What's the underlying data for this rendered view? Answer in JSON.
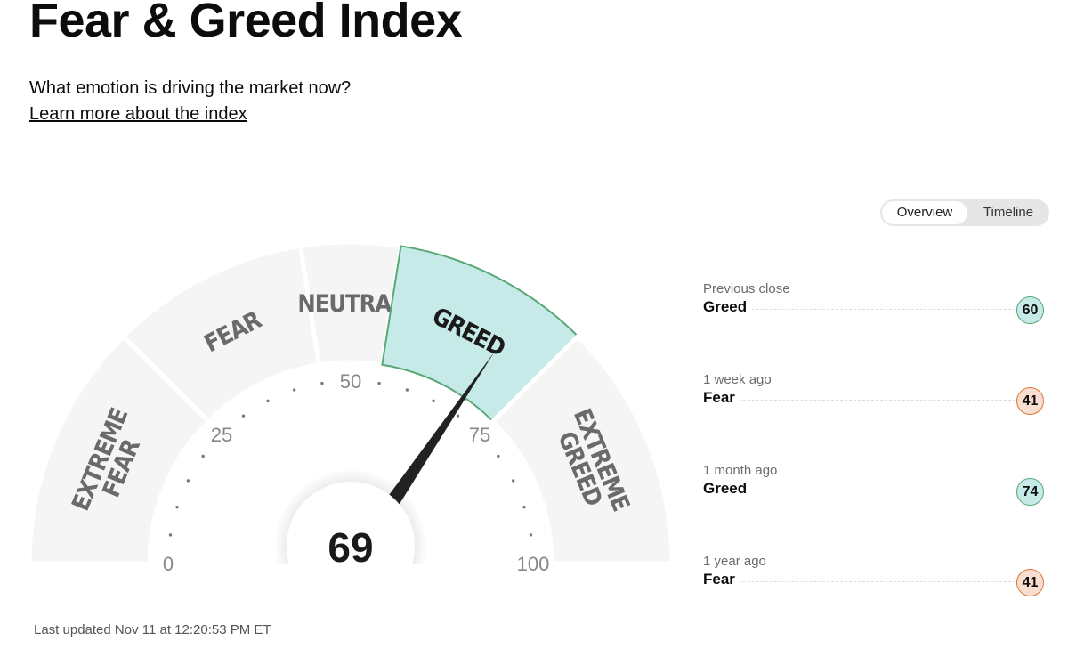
{
  "page": {
    "title": "Fear & Greed Index",
    "subtitle": "What emotion is driving the market now?",
    "learn_more": "Learn more about the index",
    "last_updated": "Last updated Nov 11 at 12:20:53 PM ET"
  },
  "toggle": {
    "overview": "Overview",
    "timeline": "Timeline",
    "selected": "Overview"
  },
  "chart_data": {
    "type": "gauge",
    "value": 69,
    "value_label": "69",
    "range": [
      0,
      100
    ],
    "active_segment": "GREED",
    "segments": [
      {
        "label": [
          "EXTREME",
          "FEAR"
        ],
        "from": 0,
        "to": 25
      },
      {
        "label": [
          "FEAR"
        ],
        "from": 25,
        "to": 45
      },
      {
        "label": [
          "NEUTRAL"
        ],
        "from": 45,
        "to": 55
      },
      {
        "label": [
          "GREED"
        ],
        "from": 55,
        "to": 75
      },
      {
        "label": [
          "EXTREME",
          "GREED"
        ],
        "from": 75,
        "to": 100
      }
    ],
    "tick_labels": [
      "0",
      "25",
      "50",
      "75",
      "100"
    ],
    "tick_values": [
      0,
      25,
      50,
      75,
      100
    ],
    "minor_tick_step": 5
  },
  "colors": {
    "segment": "#f5f5f5",
    "active_fill": "#c5eae8",
    "active_stroke": "#5aa776",
    "greed_badge": "#c5eae8",
    "greed_border": "#5aa776",
    "fear_badge": "#f9ddd0",
    "fear_border": "#d9783a",
    "needle": "#222222"
  },
  "history": [
    {
      "period": "Previous close",
      "rating": "Greed",
      "value": "60",
      "tone": "greed"
    },
    {
      "period": "1 week ago",
      "rating": "Fear",
      "value": "41",
      "tone": "fear"
    },
    {
      "period": "1 month ago",
      "rating": "Greed",
      "value": "74",
      "tone": "greed"
    },
    {
      "period": "1 year ago",
      "rating": "Fear",
      "value": "41",
      "tone": "fear"
    }
  ]
}
